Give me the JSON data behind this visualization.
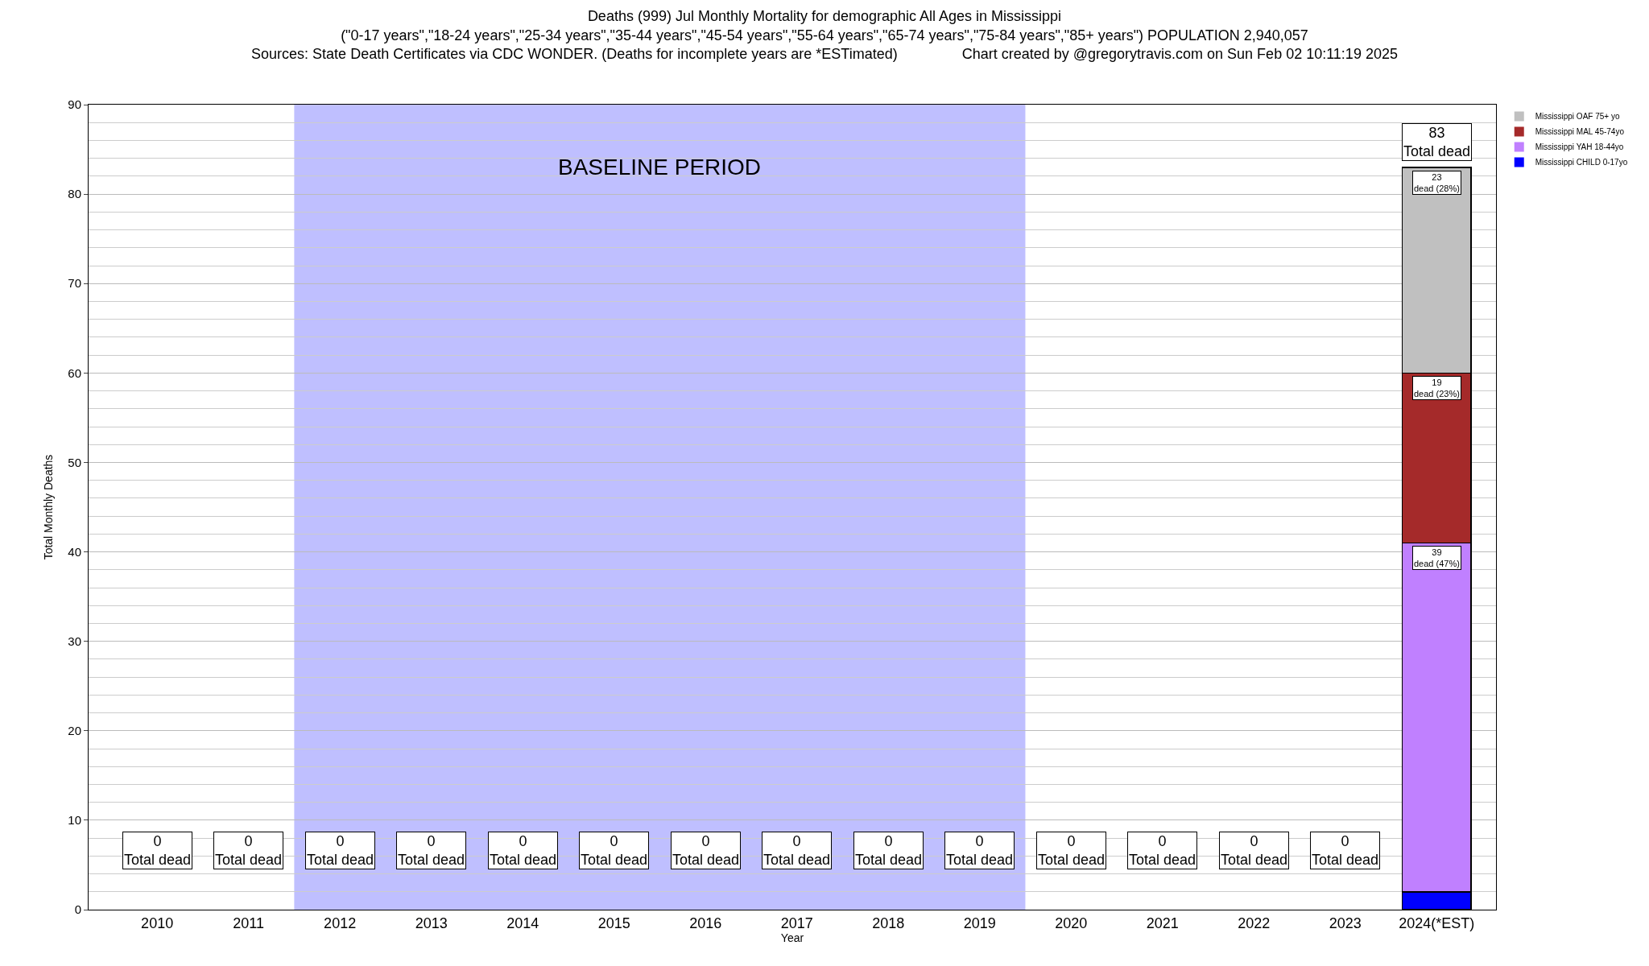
{
  "chart_data": {
    "type": "bar",
    "stacked": true,
    "title": "Deaths (999) Jul Monthly Mortality for demographic All Ages in Mississippi",
    "subtitle": "(\"0-17 years\",\"18-24 years\",\"25-34 years\",\"35-44 years\",\"45-54 years\",\"55-64 years\",\"65-74 years\",\"75-84 years\",\"85+ years\") POPULATION 2,940,057\nSources: State Death Certificates via CDC WONDER. (Deaths for incomplete years are *ESTimated)                Chart created by @gregorytravis.com on Sun Feb 02 10:11:19 2025",
    "xlabel": "Year",
    "ylabel": "Total Monthly Deaths",
    "categories": [
      "2010",
      "2011",
      "2012",
      "2013",
      "2014",
      "2015",
      "2016",
      "2017",
      "2018",
      "2019",
      "2020",
      "2021",
      "2022",
      "2023",
      "2024(*EST)"
    ],
    "series": [
      {
        "name": "Mississippi CHILD 0-17yo",
        "color": "#0000ff",
        "values": [
          0,
          0,
          0,
          0,
          0,
          0,
          0,
          0,
          0,
          0,
          0,
          0,
          0,
          0,
          2
        ],
        "value_labels": [
          null,
          null,
          null,
          null,
          null,
          null,
          null,
          null,
          null,
          null,
          null,
          null,
          null,
          null,
          null
        ]
      },
      {
        "name": "Mississippi YAH 18-44yo",
        "color": "#c080ff",
        "values": [
          0,
          0,
          0,
          0,
          0,
          0,
          0,
          0,
          0,
          0,
          0,
          0,
          0,
          0,
          39
        ],
        "value_labels": [
          null,
          null,
          null,
          null,
          null,
          null,
          null,
          null,
          null,
          null,
          null,
          null,
          null,
          null,
          "39\ndead (47%)"
        ]
      },
      {
        "name": "Mississippi MAL 45-74yo",
        "color": "#a52a2a",
        "values": [
          0,
          0,
          0,
          0,
          0,
          0,
          0,
          0,
          0,
          0,
          0,
          0,
          0,
          0,
          19
        ],
        "value_labels": [
          null,
          null,
          null,
          null,
          null,
          null,
          null,
          null,
          null,
          null,
          null,
          null,
          null,
          null,
          "19\ndead (23%)"
        ]
      },
      {
        "name": "Mississippi OAF 75+ yo",
        "color": "#c0c0c0",
        "values": [
          0,
          0,
          0,
          0,
          0,
          0,
          0,
          0,
          0,
          0,
          0,
          0,
          0,
          0,
          23
        ],
        "value_labels": [
          null,
          null,
          null,
          null,
          null,
          null,
          null,
          null,
          null,
          null,
          null,
          null,
          null,
          null,
          "23\ndead (28%)"
        ]
      }
    ],
    "totals": [
      "0\nTotal dead",
      "0\nTotal dead",
      "0\nTotal dead",
      "0\nTotal dead",
      "0\nTotal dead",
      "0\nTotal dead",
      "0\nTotal dead",
      "0\nTotal dead",
      "0\nTotal dead",
      "0\nTotal dead",
      "0\nTotal dead",
      "0\nTotal dead",
      "0\nTotal dead",
      "0\nTotal dead",
      "83\nTotal dead"
    ],
    "bands": [
      {
        "axis": "x",
        "from": "2012",
        "to": "2019",
        "label": "BASELINE PERIOD",
        "color": "#bfbfff"
      }
    ],
    "ylim": [
      0,
      90
    ],
    "yticks": [
      0,
      10,
      20,
      30,
      40,
      50,
      60,
      70,
      80,
      90
    ],
    "grid": "y",
    "legend": "top right"
  }
}
